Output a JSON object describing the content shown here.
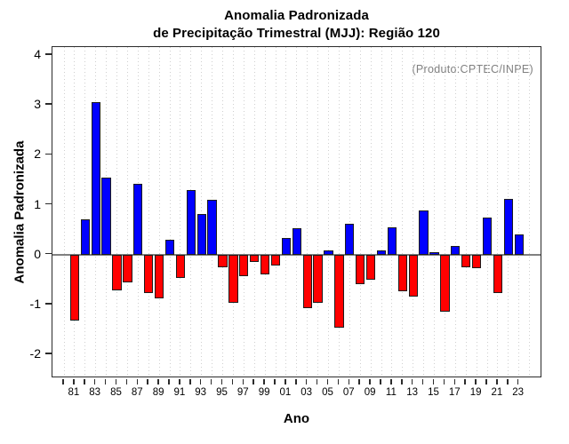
{
  "title": {
    "line1": "Anomalia Padronizada",
    "line2": "de Precipitação Trimestral (MJJ): Região 120"
  },
  "annotation": "(Produto:CPTEC/INPE)",
  "axes": {
    "x_label": "Ano",
    "y_label": "Anomalia Padronizada"
  },
  "colors": {
    "positive_bar": "#0000ff",
    "negative_bar": "#ff0000",
    "bar_border": "#1c1c1c",
    "zero_line": "#808080",
    "gridline": "#cfcfcf",
    "annotation_text": "#808080",
    "axis_frame": "#2b2b2b"
  },
  "chart_data": {
    "type": "bar",
    "title": "Anomalia Padronizada de Precipitação Trimestral (MJJ): Região 120",
    "xlabel": "Ano",
    "ylabel": "Anomalia Padronizada",
    "annotation": "(Produto:CPTEC/INPE)",
    "categories": [
      "81",
      "82",
      "83",
      "84",
      "85",
      "86",
      "87",
      "88",
      "89",
      "90",
      "91",
      "92",
      "93",
      "94",
      "95",
      "96",
      "97",
      "98",
      "99",
      "00",
      "01",
      "02",
      "03",
      "04",
      "05",
      "06",
      "07",
      "08",
      "09",
      "10",
      "11",
      "12",
      "13",
      "14",
      "15",
      "16",
      "17",
      "18",
      "19",
      "20",
      "21",
      "22",
      "23"
    ],
    "values": [
      -1.33,
      0.7,
      3.06,
      1.55,
      -0.71,
      -0.55,
      1.42,
      -0.78,
      -0.88,
      0.3,
      -0.47,
      1.3,
      0.82,
      1.09,
      -0.25,
      -0.96,
      -0.44,
      -0.15,
      -0.4,
      -0.22,
      0.33,
      0.52,
      -1.07,
      -0.96,
      0.08,
      -1.47,
      0.61,
      -0.6,
      -0.51,
      0.09,
      0.54,
      -0.73,
      -0.84,
      0.88,
      0.05,
      -1.15,
      0.18,
      -0.26,
      -0.28,
      0.75,
      -0.78,
      1.12,
      0.41
    ],
    "x_tick_labels_shown": [
      "81",
      "83",
      "85",
      "87",
      "89",
      "91",
      "93",
      "95",
      "97",
      "99",
      "01",
      "03",
      "05",
      "07",
      "09",
      "11",
      "13",
      "15",
      "17",
      "19",
      "21",
      "23"
    ],
    "yticks": [
      4,
      3,
      2,
      1,
      0,
      -1,
      -2
    ],
    "ylim": [
      -2.48,
      4.16
    ],
    "bar_color_positive": "#0000ff",
    "bar_color_negative": "#ff0000",
    "grid": "vertical-dotted",
    "legend_position": "none"
  }
}
